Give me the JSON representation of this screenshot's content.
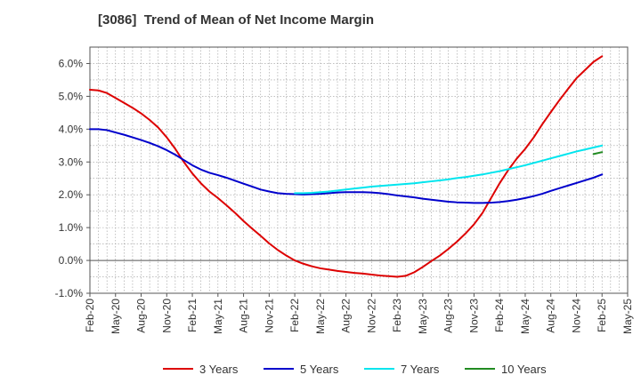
{
  "chart_data": {
    "type": "line",
    "title": "[3086]  Trend of Mean of Net Income Margin",
    "xlabel": "",
    "ylabel": "",
    "ylim": [
      -1.0,
      6.5
    ],
    "grid": true,
    "legend_position": "bottom",
    "y_ticks": [
      "-1.0%",
      "0.0%",
      "1.0%",
      "2.0%",
      "3.0%",
      "4.0%",
      "5.0%",
      "6.0%"
    ],
    "y_tick_values": [
      -1,
      0,
      1,
      2,
      3,
      4,
      5,
      6
    ],
    "x_ticks": [
      "Feb-20",
      "May-20",
      "Aug-20",
      "Nov-20",
      "Feb-21",
      "May-21",
      "Aug-21",
      "Nov-21",
      "Feb-22",
      "May-22",
      "Aug-22",
      "Nov-22",
      "Feb-23",
      "May-23",
      "Aug-23",
      "Nov-23",
      "Feb-24",
      "May-24",
      "Aug-24",
      "Nov-24",
      "Feb-25",
      "May-25"
    ],
    "x_range": [
      "Feb-20",
      "May-25"
    ],
    "series": [
      {
        "name": "3 Years",
        "color": "#dd0000",
        "points": [
          [
            "Feb-20",
            5.2
          ],
          [
            "Mar-20",
            5.18
          ],
          [
            "Apr-20",
            5.1
          ],
          [
            "May-20",
            4.95
          ],
          [
            "Jun-20",
            4.8
          ],
          [
            "Jul-20",
            4.65
          ],
          [
            "Aug-20",
            4.48
          ],
          [
            "Sep-20",
            4.28
          ],
          [
            "Oct-20",
            4.05
          ],
          [
            "Nov-20",
            3.75
          ],
          [
            "Dec-20",
            3.4
          ],
          [
            "Jan-21",
            3.0
          ],
          [
            "Feb-21",
            2.65
          ],
          [
            "Mar-21",
            2.35
          ],
          [
            "Apr-21",
            2.1
          ],
          [
            "May-21",
            1.9
          ],
          [
            "Jun-21",
            1.68
          ],
          [
            "Jul-21",
            1.45
          ],
          [
            "Aug-21",
            1.2
          ],
          [
            "Sep-21",
            0.97
          ],
          [
            "Oct-21",
            0.75
          ],
          [
            "Nov-21",
            0.52
          ],
          [
            "Dec-21",
            0.32
          ],
          [
            "Jan-22",
            0.15
          ],
          [
            "Feb-22",
            0.0
          ],
          [
            "Mar-22",
            -0.1
          ],
          [
            "Apr-22",
            -0.18
          ],
          [
            "May-22",
            -0.24
          ],
          [
            "Jun-22",
            -0.28
          ],
          [
            "Jul-22",
            -0.32
          ],
          [
            "Aug-22",
            -0.35
          ],
          [
            "Sep-22",
            -0.38
          ],
          [
            "Oct-22",
            -0.4
          ],
          [
            "Nov-22",
            -0.43
          ],
          [
            "Dec-22",
            -0.46
          ],
          [
            "Jan-23",
            -0.48
          ],
          [
            "Feb-23",
            -0.5
          ],
          [
            "Mar-23",
            -0.47
          ],
          [
            "Apr-23",
            -0.36
          ],
          [
            "May-23",
            -0.2
          ],
          [
            "Jun-23",
            -0.02
          ],
          [
            "Jul-23",
            0.15
          ],
          [
            "Aug-23",
            0.35
          ],
          [
            "Sep-23",
            0.57
          ],
          [
            "Oct-23",
            0.82
          ],
          [
            "Nov-23",
            1.1
          ],
          [
            "Dec-23",
            1.45
          ],
          [
            "Jan-24",
            1.9
          ],
          [
            "Feb-24",
            2.35
          ],
          [
            "Mar-24",
            2.75
          ],
          [
            "Apr-24",
            3.1
          ],
          [
            "May-24",
            3.4
          ],
          [
            "Jun-24",
            3.75
          ],
          [
            "Jul-24",
            4.15
          ],
          [
            "Aug-24",
            4.52
          ],
          [
            "Sep-24",
            4.88
          ],
          [
            "Oct-24",
            5.22
          ],
          [
            "Nov-24",
            5.55
          ],
          [
            "Dec-24",
            5.8
          ],
          [
            "Jan-25",
            6.05
          ],
          [
            "Feb-25",
            6.22
          ]
        ]
      },
      {
        "name": "5 Years",
        "color": "#0000cc",
        "points": [
          [
            "Feb-20",
            4.0
          ],
          [
            "Mar-20",
            4.0
          ],
          [
            "Apr-20",
            3.97
          ],
          [
            "May-20",
            3.9
          ],
          [
            "Jun-20",
            3.83
          ],
          [
            "Jul-20",
            3.75
          ],
          [
            "Aug-20",
            3.67
          ],
          [
            "Sep-20",
            3.58
          ],
          [
            "Oct-20",
            3.48
          ],
          [
            "Nov-20",
            3.36
          ],
          [
            "Dec-20",
            3.22
          ],
          [
            "Jan-21",
            3.06
          ],
          [
            "Feb-21",
            2.9
          ],
          [
            "Mar-21",
            2.77
          ],
          [
            "Apr-21",
            2.67
          ],
          [
            "May-21",
            2.6
          ],
          [
            "Jun-21",
            2.52
          ],
          [
            "Jul-21",
            2.43
          ],
          [
            "Aug-21",
            2.34
          ],
          [
            "Sep-21",
            2.25
          ],
          [
            "Oct-21",
            2.16
          ],
          [
            "Nov-21",
            2.1
          ],
          [
            "Dec-21",
            2.05
          ],
          [
            "Jan-22",
            2.03
          ],
          [
            "Feb-22",
            2.02
          ],
          [
            "Mar-22",
            2.01
          ],
          [
            "Apr-22",
            2.02
          ],
          [
            "May-22",
            2.03
          ],
          [
            "Jun-22",
            2.05
          ],
          [
            "Jul-22",
            2.07
          ],
          [
            "Aug-22",
            2.08
          ],
          [
            "Sep-22",
            2.08
          ],
          [
            "Oct-22",
            2.08
          ],
          [
            "Nov-22",
            2.07
          ],
          [
            "Dec-22",
            2.05
          ],
          [
            "Jan-23",
            2.02
          ],
          [
            "Feb-23",
            1.98
          ],
          [
            "Mar-23",
            1.95
          ],
          [
            "Apr-23",
            1.92
          ],
          [
            "May-23",
            1.88
          ],
          [
            "Jun-23",
            1.85
          ],
          [
            "Jul-23",
            1.82
          ],
          [
            "Aug-23",
            1.79
          ],
          [
            "Sep-23",
            1.77
          ],
          [
            "Oct-23",
            1.76
          ],
          [
            "Nov-23",
            1.75
          ],
          [
            "Dec-23",
            1.75
          ],
          [
            "Jan-24",
            1.76
          ],
          [
            "Feb-24",
            1.78
          ],
          [
            "Mar-24",
            1.81
          ],
          [
            "Apr-24",
            1.85
          ],
          [
            "May-24",
            1.9
          ],
          [
            "Jun-24",
            1.96
          ],
          [
            "Jul-24",
            2.03
          ],
          [
            "Aug-24",
            2.12
          ],
          [
            "Sep-24",
            2.2
          ],
          [
            "Oct-24",
            2.28
          ],
          [
            "Nov-24",
            2.36
          ],
          [
            "Dec-24",
            2.44
          ],
          [
            "Jan-25",
            2.52
          ],
          [
            "Feb-25",
            2.62
          ]
        ]
      },
      {
        "name": "7 Years",
        "color": "#00e5ee",
        "points": [
          [
            "Feb-22",
            2.05
          ],
          [
            "Mar-22",
            2.05
          ],
          [
            "Apr-22",
            2.06
          ],
          [
            "May-22",
            2.08
          ],
          [
            "Jun-22",
            2.1
          ],
          [
            "Jul-22",
            2.13
          ],
          [
            "Aug-22",
            2.16
          ],
          [
            "Sep-22",
            2.19
          ],
          [
            "Oct-22",
            2.22
          ],
          [
            "Nov-22",
            2.25
          ],
          [
            "Dec-22",
            2.27
          ],
          [
            "Jan-23",
            2.29
          ],
          [
            "Feb-23",
            2.31
          ],
          [
            "Mar-23",
            2.33
          ],
          [
            "Apr-23",
            2.35
          ],
          [
            "May-23",
            2.38
          ],
          [
            "Jun-23",
            2.41
          ],
          [
            "Jul-23",
            2.44
          ],
          [
            "Aug-23",
            2.47
          ],
          [
            "Sep-23",
            2.51
          ],
          [
            "Oct-23",
            2.54
          ],
          [
            "Nov-23",
            2.58
          ],
          [
            "Dec-23",
            2.62
          ],
          [
            "Jan-24",
            2.67
          ],
          [
            "Feb-24",
            2.72
          ],
          [
            "Mar-24",
            2.78
          ],
          [
            "Apr-24",
            2.84
          ],
          [
            "May-24",
            2.9
          ],
          [
            "Jun-24",
            2.97
          ],
          [
            "Jul-24",
            3.04
          ],
          [
            "Aug-24",
            3.11
          ],
          [
            "Sep-24",
            3.18
          ],
          [
            "Oct-24",
            3.25
          ],
          [
            "Nov-24",
            3.32
          ],
          [
            "Dec-24",
            3.38
          ],
          [
            "Jan-25",
            3.44
          ],
          [
            "Feb-25",
            3.5
          ]
        ]
      },
      {
        "name": "10 Years",
        "color": "#228b22",
        "points": [
          [
            "Jan-25",
            3.24
          ],
          [
            "Feb-25",
            3.3
          ]
        ]
      }
    ]
  }
}
